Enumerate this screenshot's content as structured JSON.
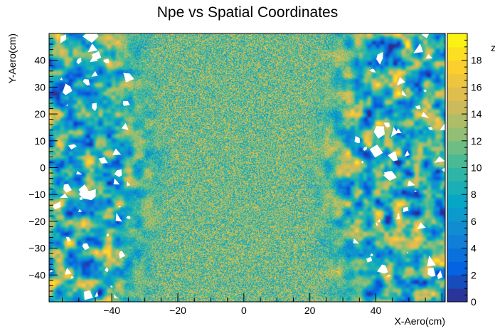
{
  "chart_data": {
    "type": "heatmap",
    "title": "Npe vs Spatial Coordinates",
    "xlabel": "X-Aero(cm)",
    "ylabel": "Y-Aero(cm)",
    "zlabel": "z",
    "xlim": [
      -59,
      61
    ],
    "ylim": [
      -50,
      50
    ],
    "zlim": [
      0,
      20
    ],
    "x_ticks": [
      -40,
      -20,
      0,
      20,
      40
    ],
    "y_ticks": [
      -40,
      -30,
      -20,
      -10,
      0,
      10,
      20,
      30,
      40
    ],
    "z_ticks": [
      0,
      2,
      4,
      6,
      8,
      10,
      12,
      14,
      16,
      18
    ],
    "x_tick_labels": [
      "−40",
      "−20",
      "0",
      "20",
      "40"
    ],
    "y_tick_labels": [
      "−40",
      "−30",
      "−20",
      "−10",
      "0",
      "10",
      "20",
      "30",
      "40"
    ],
    "z_tick_labels": [
      "0",
      "2",
      "4",
      "6",
      "8",
      "10",
      "12",
      "14",
      "16",
      "18"
    ],
    "palette": "ROOT kBird (blue to yellow)",
    "colors": [
      "#352a87",
      "#0363e1",
      "#1485d4",
      "#06a7c6",
      "#38b99e",
      "#92bf73",
      "#d9ba56",
      "#fcce2e",
      "#f9fb0e"
    ],
    "description": "Dense fine-grained noise in central region (|X| < ~25 cm), coarse blotchy patches with blank holes toward left and right edges",
    "grid": false,
    "legend": "colorbar-right"
  }
}
